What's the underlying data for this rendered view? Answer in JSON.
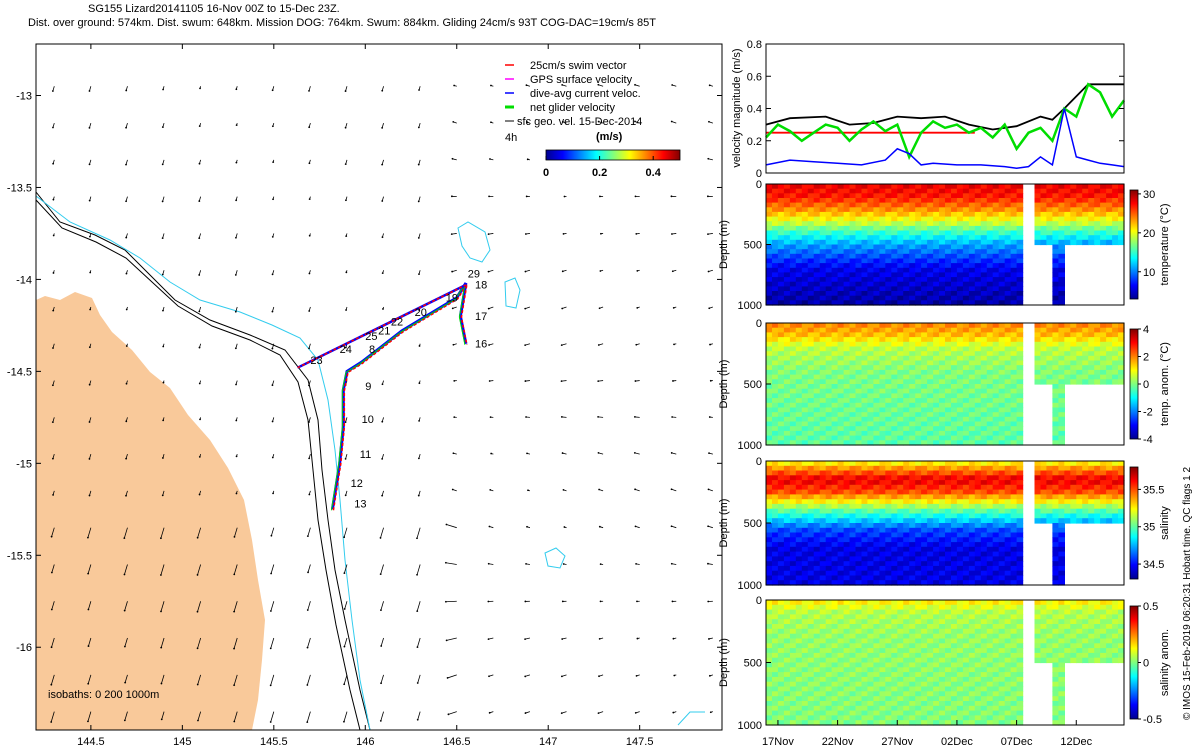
{
  "header": {
    "title_line1": "SG155 Lizard20141105 16-Nov 00Z to 15-Dec 23Z.",
    "title_line2": "Dist. over ground: 574km. Dist. swum: 648km. Mission DOG: 764km. Swum: 884km. Gliding 24cm/s 93T COG-DAC=19cm/s 85T"
  },
  "credit": "© IMOS 15-Feb-2019 06:20:31 Hobart time. QC flags 1 2",
  "colors": {
    "land": "#f9c99a",
    "isobath_200": "#000000",
    "isobath_1000": "#33ccee",
    "swim_vector": "#ff0000",
    "gps_velocity": "#ff00ff",
    "dive_avg": "#0000ff",
    "net_velocity": "#00dd00",
    "sfc_geo": "#000000",
    "vel_black": "#000000"
  },
  "chart_data": [
    {
      "type": "map",
      "id": "map",
      "xlim": [
        144.2,
        147.95
      ],
      "ylim": [
        -16.45,
        -12.72
      ],
      "xticks": [
        "144.5",
        "145",
        "145.5",
        "146",
        "146.5",
        "147",
        "147.5"
      ],
      "xtick_values": [
        144.5,
        145,
        145.5,
        146,
        146.5,
        147,
        147.5
      ],
      "yticks": [
        "-13",
        "-13.5",
        "-14",
        "-14.5",
        "-15",
        "-15.5",
        "-16"
      ],
      "ytick_values": [
        -13,
        -13.5,
        -14,
        -14.5,
        -15,
        -15.5,
        -16
      ],
      "isobath_label": "isobaths: 0   200  1000m",
      "legend": {
        "placement": "top-right",
        "entries": [
          "25cm/s swim vector",
          "GPS surface velocity",
          "dive-avg current veloc.",
          "net glider velocity",
          "sfc geo. vel. 15-Dec-2014"
        ],
        "arrow_label": "4h"
      },
      "colorbar": {
        "label": "(m/s)",
        "ticks": [
          "0",
          "0.2",
          "0.4"
        ],
        "tick_values": [
          0,
          0.2,
          0.4
        ],
        "range": [
          0,
          0.5
        ]
      },
      "glider_track": [
        [
          145.82,
          -15.25
        ],
        [
          145.86,
          -15.0
        ],
        [
          145.88,
          -14.8
        ],
        [
          145.88,
          -14.6
        ],
        [
          145.9,
          -14.5
        ],
        [
          145.98,
          -14.45
        ],
        [
          146.2,
          -14.28
        ],
        [
          146.5,
          -14.1
        ],
        [
          146.55,
          -14.02
        ],
        [
          146.52,
          -14.2
        ],
        [
          146.55,
          -14.35
        ]
      ],
      "track_labels": [
        {
          "text": "8",
          "lon": 146.02,
          "lat": -14.4
        },
        {
          "text": "9",
          "lon": 146.0,
          "lat": -14.6
        },
        {
          "text": "10",
          "lon": 145.98,
          "lat": -14.78
        },
        {
          "text": "11",
          "lon": 145.97,
          "lat": -14.97
        },
        {
          "text": "12",
          "lon": 145.92,
          "lat": -15.13
        },
        {
          "text": "13",
          "lon": 145.94,
          "lat": -15.24
        },
        {
          "text": "16",
          "lon": 146.6,
          "lat": -14.37
        },
        {
          "text": "17",
          "lon": 146.6,
          "lat": -14.22
        },
        {
          "text": "18",
          "lon": 146.6,
          "lat": -14.05
        },
        {
          "text": "19",
          "lon": 146.44,
          "lat": -14.12
        },
        {
          "text": "20",
          "lon": 146.27,
          "lat": -14.2
        },
        {
          "text": "21",
          "lon": 146.07,
          "lat": -14.3
        },
        {
          "text": "22",
          "lon": 146.14,
          "lat": -14.25
        },
        {
          "text": "23",
          "lon": 145.7,
          "lat": -14.46
        },
        {
          "text": "24",
          "lon": 145.86,
          "lat": -14.4
        },
        {
          "text": "25",
          "lon": 146.0,
          "lat": -14.33
        },
        {
          "text": "29",
          "lon": 146.56,
          "lat": -13.99
        }
      ]
    },
    {
      "type": "line",
      "id": "velocity",
      "ylabel": "velocity magnitude (m/s)",
      "ylim": [
        0,
        0.8
      ],
      "yticks": [
        "0",
        "0.2",
        "0.4",
        "0.6",
        "0.8"
      ],
      "ytick_values": [
        0,
        0.2,
        0.4,
        0.6,
        0.8
      ],
      "xlim_days": [
        0,
        30
      ],
      "series": [
        {
          "color": "black",
          "x": [
            0,
            2,
            5,
            7,
            9,
            11,
            13,
            15,
            17,
            19,
            21,
            23,
            24,
            25,
            27,
            28,
            30
          ],
          "y": [
            0.3,
            0.34,
            0.35,
            0.3,
            0.31,
            0.35,
            0.34,
            0.35,
            0.3,
            0.27,
            0.29,
            0.35,
            0.33,
            0.4,
            0.55,
            0.55,
            0.55
          ]
        },
        {
          "color": "red",
          "x": [
            0,
            17.5
          ],
          "y": [
            0.25,
            0.25
          ]
        },
        {
          "color": "green",
          "x": [
            0,
            1,
            2,
            3,
            4,
            5,
            6,
            7,
            8,
            9,
            10,
            11,
            12,
            13,
            14,
            15,
            16,
            17,
            18,
            19,
            20,
            21,
            22,
            23,
            24,
            25,
            26,
            27,
            28,
            29,
            30
          ],
          "y": [
            0.22,
            0.3,
            0.26,
            0.2,
            0.25,
            0.3,
            0.28,
            0.2,
            0.27,
            0.32,
            0.26,
            0.3,
            0.1,
            0.25,
            0.32,
            0.28,
            0.3,
            0.25,
            0.28,
            0.22,
            0.3,
            0.15,
            0.25,
            0.28,
            0.2,
            0.4,
            0.35,
            0.55,
            0.5,
            0.35,
            0.45
          ]
        },
        {
          "color": "blue",
          "x": [
            0,
            2,
            4,
            6,
            8,
            10,
            11,
            12,
            13,
            14,
            16,
            18,
            20,
            21,
            22,
            23,
            24,
            25,
            26,
            27,
            28,
            29,
            30
          ],
          "y": [
            0.05,
            0.08,
            0.07,
            0.06,
            0.05,
            0.08,
            0.15,
            0.12,
            0.05,
            0.06,
            0.05,
            0.05,
            0.04,
            0.03,
            0.04,
            0.1,
            0.05,
            0.4,
            0.1,
            0.08,
            0.06,
            0.05,
            0.04
          ]
        }
      ]
    },
    {
      "type": "heatmap",
      "id": "temperature",
      "ylabel": "Depth (m)",
      "cbar_label": "temperature (°C)",
      "yticks": [
        "0",
        "500",
        "1000"
      ],
      "ytick_values": [
        0,
        500,
        1000
      ],
      "cbar_ticks": [
        "10",
        "20",
        "30"
      ],
      "cbar_tick_values": [
        10,
        20,
        30
      ],
      "cbar_range": [
        3,
        31
      ],
      "profile_depth": [
        0,
        100,
        200,
        300,
        400,
        500,
        700,
        1000
      ],
      "profile_value": [
        28,
        27,
        24,
        20,
        15,
        11,
        6,
        4
      ]
    },
    {
      "type": "heatmap",
      "id": "temp_anom",
      "ylabel": "Depth (m)",
      "cbar_label": "temp. anom. (°C)",
      "yticks": [
        "0",
        "500",
        "1000"
      ],
      "ytick_values": [
        0,
        500,
        1000
      ],
      "cbar_ticks": [
        "-4",
        "-2",
        "0",
        "2",
        "4"
      ],
      "cbar_tick_values": [
        -4,
        -2,
        0,
        2,
        4
      ],
      "cbar_range": [
        -4,
        4
      ],
      "profile_depth": [
        0,
        100,
        200,
        400,
        1000
      ],
      "profile_value": [
        2,
        1.5,
        0.5,
        0,
        -0.3
      ]
    },
    {
      "type": "heatmap",
      "id": "salinity",
      "ylabel": "Depth (m)",
      "cbar_label": "salinity",
      "yticks": [
        "0",
        "500",
        "1000"
      ],
      "ytick_values": [
        0,
        500,
        1000
      ],
      "cbar_ticks": [
        "34.5",
        "35",
        "35.5"
      ],
      "cbar_tick_values": [
        34.5,
        35,
        35.5
      ],
      "cbar_range": [
        34.3,
        35.8
      ],
      "profile_depth": [
        0,
        60,
        150,
        250,
        400,
        550,
        700,
        1000
      ],
      "profile_value": [
        35.2,
        35.4,
        35.65,
        35.5,
        35.0,
        34.6,
        34.45,
        34.45
      ]
    },
    {
      "type": "heatmap",
      "id": "sal_anom",
      "ylabel": "Depth (m)",
      "cbar_label": "salinity anom.",
      "yticks": [
        "0",
        "500",
        "1000"
      ],
      "ytick_values": [
        0,
        500,
        1000
      ],
      "cbar_ticks": [
        "-0.5",
        "0",
        "0.5"
      ],
      "cbar_tick_values": [
        -0.5,
        0,
        0.5
      ],
      "cbar_range": [
        -0.5,
        0.5
      ],
      "profile_depth": [
        0,
        100,
        300,
        1000
      ],
      "profile_value": [
        0.15,
        0.05,
        0.02,
        0.0
      ]
    }
  ],
  "time_axis": {
    "labels": [
      "17Nov",
      "22Nov",
      "27Nov",
      "02Dec",
      "07Dec",
      "12Dec"
    ],
    "days": [
      1,
      6,
      11,
      16,
      21,
      26
    ],
    "gap_days": [
      21.3,
      22.5
    ],
    "deep_gap_days": [
      24.0,
      25.0
    ],
    "shallow_limit_m": 500
  }
}
